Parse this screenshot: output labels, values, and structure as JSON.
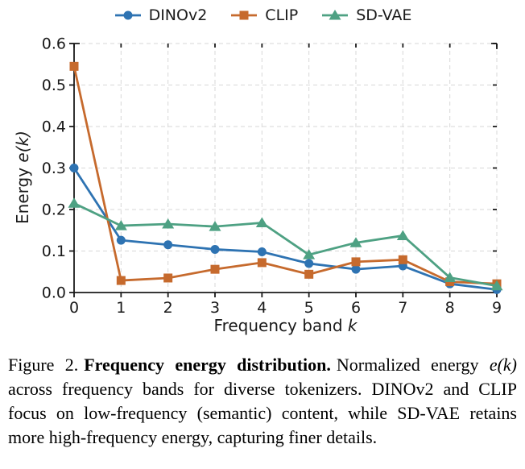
{
  "chart_data": {
    "type": "line",
    "title": "",
    "xlabel_text": "Frequency band",
    "xlabel_math": "k",
    "ylabel_text": "Energy",
    "ylabel_math": "e(k)",
    "x": [
      0,
      1,
      2,
      3,
      4,
      5,
      6,
      7,
      8,
      9
    ],
    "xlim": [
      0,
      9
    ],
    "ylim": [
      0,
      0.6
    ],
    "xticks": [
      "0",
      "1",
      "2",
      "3",
      "4",
      "5",
      "6",
      "7",
      "8",
      "9"
    ],
    "yticks": [
      "0.0",
      "0.1",
      "0.2",
      "0.3",
      "0.4",
      "0.5",
      "0.6"
    ],
    "grid": true,
    "grid_style": "dashed",
    "legend_position": "top-center",
    "series": [
      {
        "name": "DINOv2",
        "marker": "circle",
        "color": "#2e73b2",
        "values": [
          0.3,
          0.126,
          0.115,
          0.104,
          0.098,
          0.07,
          0.056,
          0.064,
          0.021,
          0.007
        ]
      },
      {
        "name": "CLIP",
        "marker": "square",
        "color": "#c66a2d",
        "values": [
          0.545,
          0.029,
          0.035,
          0.056,
          0.072,
          0.044,
          0.074,
          0.079,
          0.026,
          0.021
        ]
      },
      {
        "name": "SD-VAE",
        "marker": "triangle",
        "color": "#4ea183",
        "values": [
          0.215,
          0.161,
          0.165,
          0.159,
          0.168,
          0.091,
          0.12,
          0.137,
          0.036,
          0.016
        ]
      }
    ]
  },
  "caption": {
    "label": "Figure 2.",
    "title": "Frequency energy distribution.",
    "body_pre": "Normalized energy",
    "energy_term": "e(k)",
    "body_post": "across frequency bands for diverse tokenizers. DINOv2 and CLIP focus on low-frequency (semantic) content, while SD-VAE retains more high-frequency energy, capturing finer details."
  }
}
